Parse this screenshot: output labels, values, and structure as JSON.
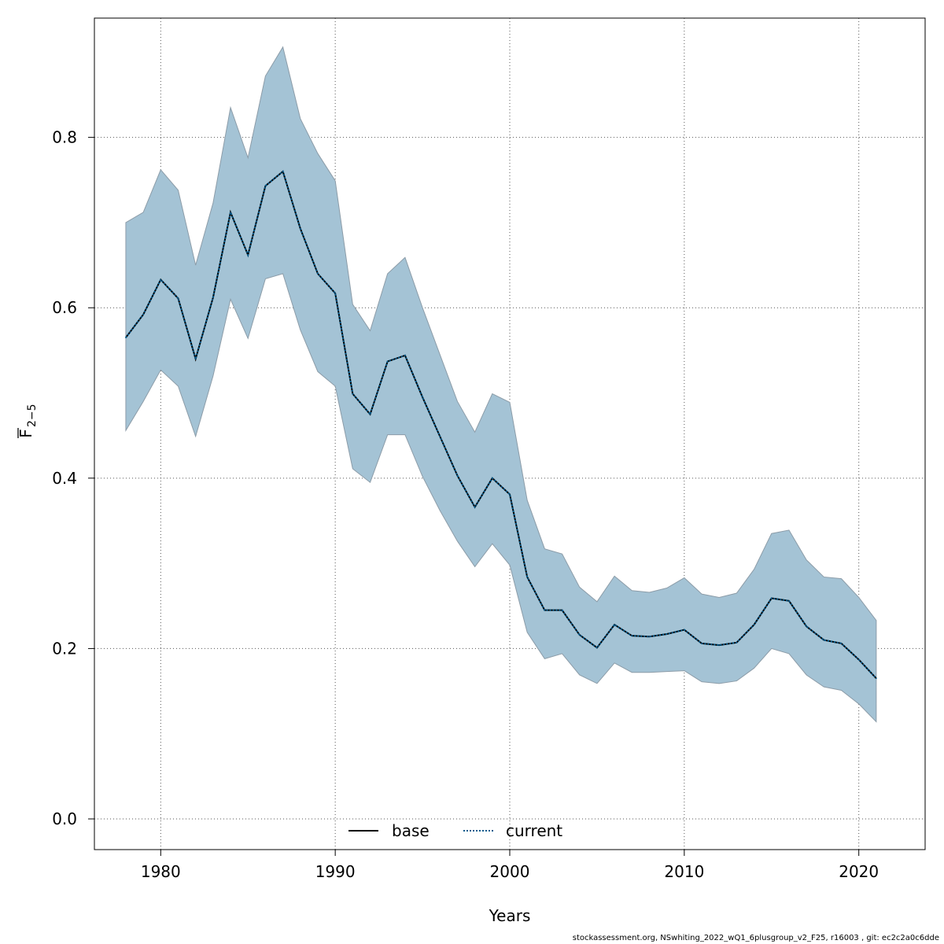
{
  "chart_data": {
    "type": "area",
    "title": "",
    "xlabel": "Years",
    "ylabel_main": "F",
    "ylabel_sub": "2−5",
    "xlim": [
      1976.2,
      2023.8
    ],
    "ylim": [
      -0.036,
      0.94
    ],
    "xticks": [
      1980,
      1990,
      2000,
      2010,
      2020
    ],
    "yticks": [
      0.0,
      0.2,
      0.4,
      0.6,
      0.8
    ],
    "ytick_labels": [
      "0.0",
      "0.2",
      "0.4",
      "0.6",
      "0.8"
    ],
    "grid": true,
    "legend_position": "bottom-center",
    "legend": [
      {
        "name": "base",
        "style": "solid",
        "color": "#000000"
      },
      {
        "name": "current",
        "style": "dotted",
        "color": "#005a8c"
      }
    ],
    "band_color": "#a4c3d5",
    "band_edge_color": "#8c9ca8",
    "x": [
      1978,
      1979,
      1980,
      1981,
      1982,
      1983,
      1984,
      1985,
      1986,
      1987,
      1988,
      1989,
      1990,
      1991,
      1992,
      1993,
      1994,
      1995,
      1996,
      1997,
      1998,
      1999,
      2000,
      2001,
      2002,
      2003,
      2004,
      2005,
      2006,
      2007,
      2008,
      2009,
      2010,
      2011,
      2012,
      2013,
      2014,
      2015,
      2016,
      2017,
      2018,
      2019,
      2020,
      2021
    ],
    "series": [
      {
        "name": "current",
        "values": [
          0.565,
          0.592,
          0.633,
          0.611,
          0.54,
          0.612,
          0.712,
          0.662,
          0.743,
          0.76,
          0.693,
          0.64,
          0.617,
          0.499,
          0.475,
          0.537,
          0.544,
          0.495,
          0.449,
          0.403,
          0.366,
          0.4,
          0.381,
          0.284,
          0.245,
          0.245,
          0.216,
          0.201,
          0.228,
          0.215,
          0.214,
          0.217,
          0.222,
          0.206,
          0.204,
          0.207,
          0.228,
          0.259,
          0.256,
          0.226,
          0.21,
          0.206,
          0.187,
          0.165
        ],
        "upper": [
          0.7,
          0.712,
          0.762,
          0.738,
          0.65,
          0.723,
          0.835,
          0.776,
          0.872,
          0.906,
          0.822,
          0.781,
          0.749,
          0.604,
          0.573,
          0.64,
          0.659,
          0.6,
          0.545,
          0.49,
          0.454,
          0.499,
          0.489,
          0.374,
          0.317,
          0.311,
          0.272,
          0.255,
          0.285,
          0.268,
          0.266,
          0.271,
          0.283,
          0.264,
          0.26,
          0.265,
          0.293,
          0.335,
          0.339,
          0.304,
          0.284,
          0.282,
          0.26,
          0.233
        ],
        "lower": [
          0.456,
          0.49,
          0.527,
          0.508,
          0.449,
          0.52,
          0.61,
          0.564,
          0.634,
          0.64,
          0.574,
          0.525,
          0.508,
          0.411,
          0.395,
          0.451,
          0.451,
          0.402,
          0.362,
          0.326,
          0.296,
          0.323,
          0.298,
          0.219,
          0.188,
          0.194,
          0.169,
          0.159,
          0.183,
          0.172,
          0.172,
          0.173,
          0.174,
          0.161,
          0.159,
          0.162,
          0.177,
          0.2,
          0.194,
          0.169,
          0.155,
          0.151,
          0.135,
          0.114
        ]
      }
    ]
  },
  "footer": "stockassessment.org, NSwhiting_2022_wQ1_6plusgroup_v2_F25, r16003 , git: ec2c2a0c6dde"
}
